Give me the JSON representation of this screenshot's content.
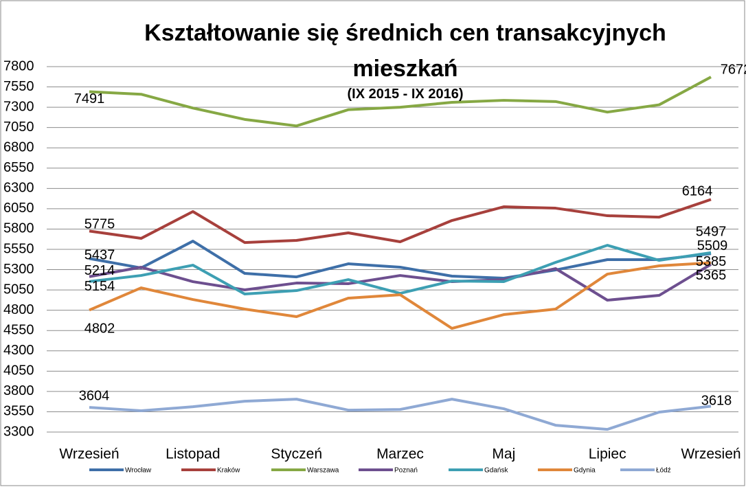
{
  "chart_data": {
    "type": "line",
    "title": "Kształtowanie się średnich cen transakcyjnych mieszkań",
    "subtitle": "(IX 2015 - IX 2016)",
    "categories": [
      "Wrzesień",
      null,
      "Listopad",
      null,
      "Styczeń",
      null,
      "Marzec",
      null,
      "Maj",
      null,
      "Lipiec",
      null,
      "Wrzesień"
    ],
    "ylim": [
      3300,
      7800
    ],
    "yticks": [
      3300,
      3550,
      3800,
      4050,
      4300,
      4550,
      4800,
      5050,
      5300,
      5550,
      5800,
      6050,
      6300,
      6550,
      6800,
      7050,
      7300,
      7550,
      7800
    ],
    "grid": true,
    "legend": "bottom",
    "series": [
      {
        "name": "Wrocław",
        "color": "#3e6fa8",
        "values": [
          5437,
          5321,
          5651,
          5254,
          5211,
          5372,
          5330,
          5220,
          5195,
          5296,
          5423,
          5423,
          5497
        ]
      },
      {
        "name": "Kraków",
        "color": "#a7403c",
        "values": [
          5775,
          5685,
          6015,
          5634,
          5660,
          5753,
          5643,
          5905,
          6074,
          6057,
          5964,
          5947,
          6164
        ]
      },
      {
        "name": "Warszawa",
        "color": "#86a844",
        "values": [
          7491,
          7460,
          7290,
          7150,
          7070,
          7270,
          7300,
          7360,
          7385,
          7370,
          7240,
          7330,
          7672
        ]
      },
      {
        "name": "Poznań",
        "color": "#6d4f8f",
        "values": [
          5214,
          5330,
          5152,
          5051,
          5135,
          5127,
          5228,
          5152,
          5177,
          5313,
          4924,
          4983,
          5365
        ]
      },
      {
        "name": "Gdańsk",
        "color": "#3d9fb3",
        "values": [
          5154,
          5228,
          5355,
          5000,
          5042,
          5177,
          5008,
          5160,
          5152,
          5389,
          5600,
          5414,
          5509
        ]
      },
      {
        "name": "Gdynia",
        "color": "#e0873a",
        "values": [
          4802,
          5076,
          4932,
          4814,
          4721,
          4949,
          4991,
          4577,
          4746,
          4814,
          5245,
          5347,
          5385
        ]
      },
      {
        "name": "Łódź",
        "color": "#8fa9d4",
        "values": [
          3604,
          3562,
          3612,
          3680,
          3705,
          3570,
          3578,
          3705,
          3587,
          3384,
          3333,
          3545,
          3618
        ]
      }
    ]
  }
}
